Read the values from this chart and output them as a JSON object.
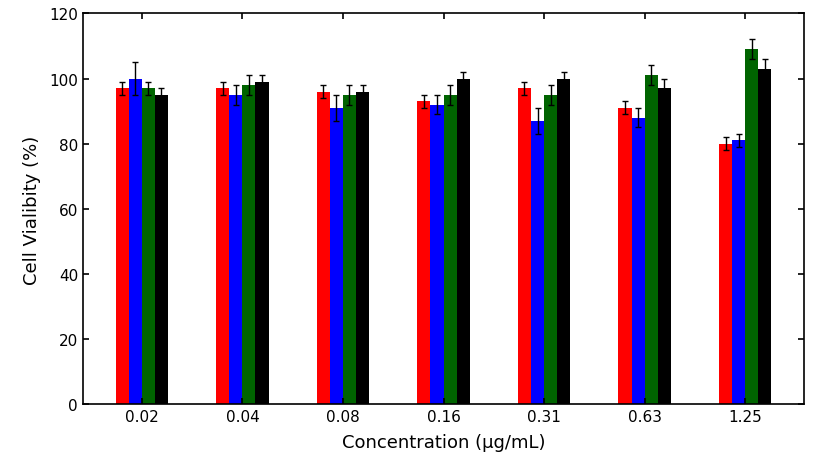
{
  "categories": [
    "0.02",
    "0.04",
    "0.08",
    "0.16",
    "0.31",
    "0.63",
    "1.25"
  ],
  "series": {
    "red": [
      97,
      97,
      96,
      93,
      97,
      91,
      80
    ],
    "blue": [
      100,
      95,
      91,
      92,
      87,
      88,
      81
    ],
    "green": [
      97,
      98,
      95,
      95,
      95,
      101,
      109
    ],
    "black": [
      95,
      99,
      96,
      100,
      100,
      97,
      103
    ]
  },
  "errors": {
    "red": [
      2,
      2,
      2,
      2,
      2,
      2,
      2
    ],
    "blue": [
      5,
      3,
      4,
      3,
      4,
      3,
      2
    ],
    "green": [
      2,
      3,
      3,
      3,
      3,
      3,
      3
    ],
    "black": [
      2,
      2,
      2,
      2,
      2,
      3,
      3
    ]
  },
  "colors": [
    "#ff0000",
    "#0000ff",
    "#006400",
    "#000000"
  ],
  "series_names": [
    "red",
    "blue",
    "green",
    "black"
  ],
  "xlabel": "Concentration (µg/mL)",
  "ylabel": "Cell Vialibity (%)",
  "ylim": [
    0,
    120
  ],
  "yticks": [
    0,
    20,
    40,
    60,
    80,
    100,
    120
  ],
  "bar_width": 0.13,
  "background_color": "#ffffff",
  "tick_fontsize": 11,
  "label_fontsize": 13
}
